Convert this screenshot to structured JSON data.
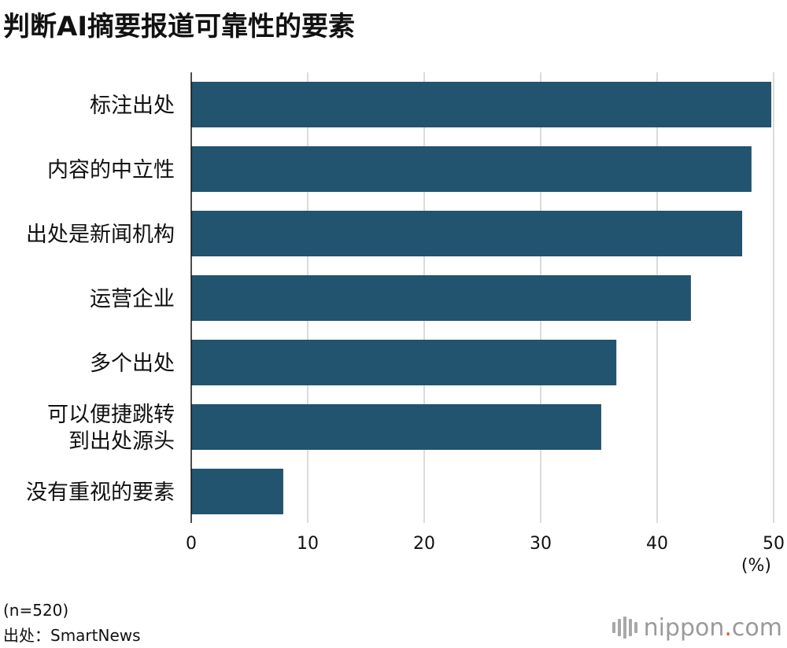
{
  "chart_data": {
    "type": "bar",
    "orientation": "horizontal",
    "title": "判断AI摘要报道可靠性的要素",
    "categories": [
      "标注出处",
      "内容的中立性",
      "出处是新闻机构",
      "运营企业",
      "多个出处",
      "可以便捷跳转\n到出处源头",
      "没有重视的要素"
    ],
    "values": [
      49.8,
      48.1,
      47.3,
      42.9,
      36.5,
      35.2,
      7.9
    ],
    "xlim": [
      0,
      50
    ],
    "xticks": [
      0,
      10,
      20,
      30,
      40,
      50
    ],
    "xlabel": "(%)",
    "grid": true,
    "bar_color": "#22536f",
    "legend": "none"
  },
  "notes": {
    "sample": "(n=520)",
    "source": "出处：SmartNews"
  },
  "logo": {
    "text_main": "nippon",
    "text_dot": ".",
    "text_tail": "com"
  }
}
